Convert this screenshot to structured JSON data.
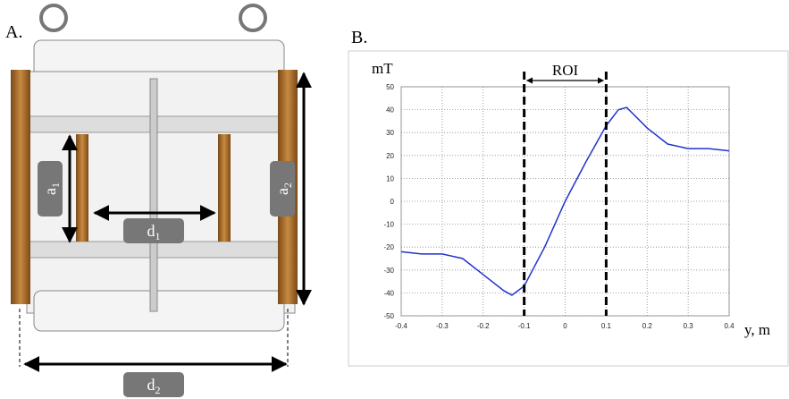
{
  "panel_a": {
    "label": "A.",
    "tags": [
      {
        "main": "a",
        "sub": "1"
      },
      {
        "main": "a",
        "sub": "2"
      },
      {
        "main": "d",
        "sub": "1"
      },
      {
        "main": "d",
        "sub": "2"
      }
    ]
  },
  "chart_data": {
    "type": "line",
    "panel_label": "B.",
    "y_label": "mT",
    "x_label": "y, m",
    "x": [
      -0.4,
      -0.35,
      -0.3,
      -0.25,
      -0.2,
      -0.15,
      -0.13,
      -0.1,
      -0.05,
      0,
      0.05,
      0.1,
      0.13,
      0.15,
      0.2,
      0.25,
      0.3,
      0.35,
      0.4
    ],
    "series": [
      {
        "color": "#2233cc",
        "values": [
          -22,
          -23,
          -23,
          -25,
          -32,
          -39,
          -41,
          -37,
          -20,
          0,
          17,
          33,
          40,
          41,
          32,
          25,
          23,
          23,
          22
        ]
      }
    ],
    "xlim": [
      -0.4,
      0.4
    ],
    "ylim": [
      -50,
      50
    ],
    "xticks": [
      -0.4,
      -0.3,
      -0.2,
      -0.1,
      0,
      0.1,
      0.2,
      0.3,
      0.4
    ],
    "yticks": [
      -50,
      -40,
      -30,
      -20,
      -10,
      0,
      10,
      20,
      30,
      40,
      50
    ],
    "grid": true,
    "roi": {
      "label": "ROI",
      "range": [
        -0.1,
        0.1
      ]
    }
  }
}
